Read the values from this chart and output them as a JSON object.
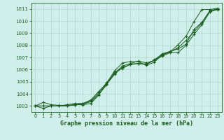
{
  "title": "Graphe pression niveau de la mer (hPa)",
  "xlim": [
    -0.5,
    23.5
  ],
  "ylim": [
    1002.5,
    1011.5
  ],
  "yticks": [
    1003,
    1004,
    1005,
    1006,
    1007,
    1008,
    1009,
    1010,
    1011
  ],
  "xticks": [
    0,
    1,
    2,
    3,
    4,
    5,
    6,
    7,
    8,
    9,
    10,
    11,
    12,
    13,
    14,
    15,
    16,
    17,
    18,
    19,
    20,
    21,
    22,
    23
  ],
  "background_color": "#d0eeea",
  "grid_color": "#b0d8d0",
  "line_color": "#1a5e20",
  "title_color": "#1a5e20",
  "series": [
    [
      1003.0,
      1003.3,
      1003.1,
      1003.05,
      1003.05,
      1003.1,
      1003.1,
      1003.2,
      1003.9,
      1004.9,
      1005.9,
      1006.55,
      1006.65,
      1006.65,
      1006.35,
      1006.6,
      1007.25,
      1007.45,
      1008.05,
      1008.75,
      1009.95,
      1010.95,
      1010.95,
      1011.05
    ],
    [
      1003.0,
      1002.8,
      1003.0,
      1003.0,
      1003.1,
      1003.2,
      1003.2,
      1003.5,
      1004.2,
      1004.9,
      1005.7,
      1006.3,
      1006.5,
      1006.7,
      1006.55,
      1006.75,
      1007.1,
      1007.4,
      1007.4,
      1008.0,
      1008.9,
      1009.7,
      1010.75,
      1010.95
    ],
    [
      1003.0,
      1003.0,
      1003.0,
      1003.0,
      1003.0,
      1003.1,
      1003.2,
      1003.4,
      1004.1,
      1004.8,
      1005.6,
      1006.2,
      1006.4,
      1006.5,
      1006.4,
      1006.8,
      1007.3,
      1007.5,
      1007.7,
      1008.1,
      1009.3,
      1009.9,
      1010.85,
      1011.0
    ],
    [
      1003.0,
      1003.0,
      1003.0,
      1003.0,
      1003.0,
      1003.1,
      1003.15,
      1003.35,
      1003.95,
      1004.75,
      1005.8,
      1006.1,
      1006.45,
      1006.5,
      1006.45,
      1006.75,
      1007.2,
      1007.45,
      1007.8,
      1008.4,
      1009.1,
      1009.85,
      1010.8,
      1011.0
    ]
  ]
}
